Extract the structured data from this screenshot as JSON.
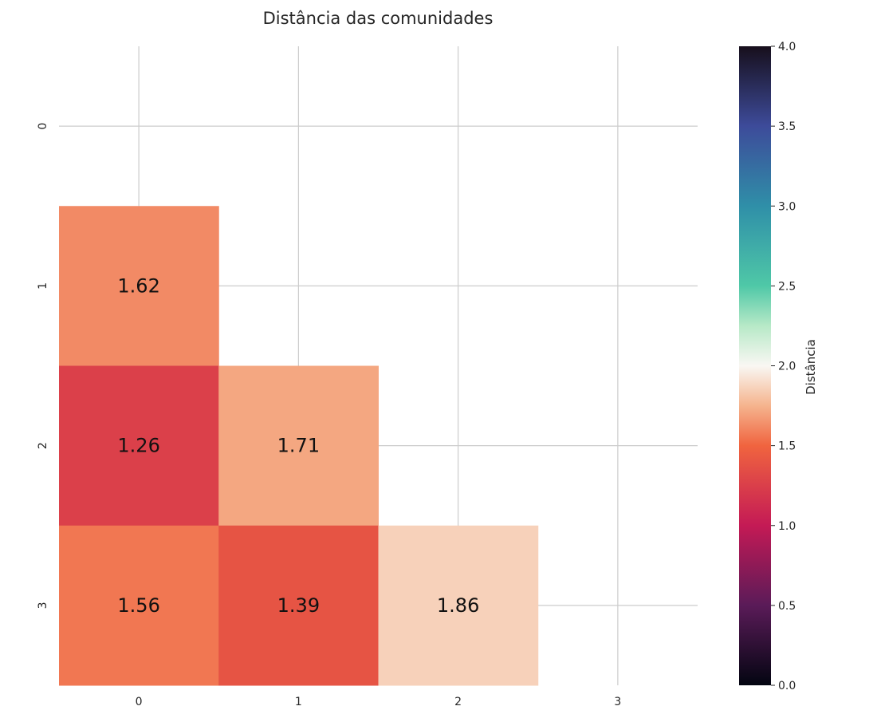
{
  "chart_data": {
    "type": "heatmap",
    "title": "Distância das comunidades",
    "x_categories": [
      "0",
      "1",
      "2",
      "3"
    ],
    "y_categories": [
      "0",
      "1",
      "2",
      "3"
    ],
    "cells": [
      {
        "row": 1,
        "col": 0,
        "value": 1.62,
        "label": "1.62"
      },
      {
        "row": 2,
        "col": 0,
        "value": 1.26,
        "label": "1.26"
      },
      {
        "row": 2,
        "col": 1,
        "value": 1.71,
        "label": "1.71"
      },
      {
        "row": 3,
        "col": 0,
        "value": 1.56,
        "label": "1.56"
      },
      {
        "row": 3,
        "col": 1,
        "value": 1.39,
        "label": "1.39"
      },
      {
        "row": 3,
        "col": 2,
        "value": 1.86,
        "label": "1.86"
      }
    ],
    "colorbar": {
      "label": "Distância",
      "range": [
        0,
        4
      ],
      "ticks": [
        "0.0",
        "0.5",
        "1.0",
        "1.5",
        "2.0",
        "2.5",
        "3.0",
        "3.5",
        "4.0"
      ],
      "colormap": "icefire_r",
      "stops": [
        {
          "v": 0.0,
          "color": "#030511"
        },
        {
          "v": 0.5,
          "color": "#5a1b58"
        },
        {
          "v": 1.0,
          "color": "#c41a55"
        },
        {
          "v": 1.5,
          "color": "#f0643f"
        },
        {
          "v": 1.75,
          "color": "#f5b48e"
        },
        {
          "v": 2.0,
          "color": "#f9f7f3"
        },
        {
          "v": 2.25,
          "color": "#b7e9c7"
        },
        {
          "v": 2.5,
          "color": "#4fc8a7"
        },
        {
          "v": 3.0,
          "color": "#2f8fa8"
        },
        {
          "v": 3.5,
          "color": "#3d4b9a"
        },
        {
          "v": 4.0,
          "color": "#170f1c"
        }
      ]
    },
    "grid": true
  }
}
